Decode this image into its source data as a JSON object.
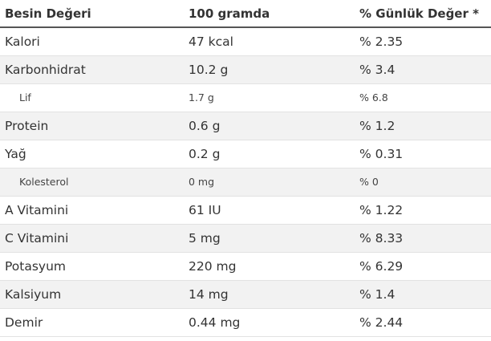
{
  "table": {
    "headers": {
      "nutrient": "Besin Değeri",
      "per_100g": "100 gramda",
      "daily_value": "% Günlük Değer *"
    },
    "rows": [
      {
        "name": "Kalori",
        "amount": "47 kcal",
        "daily": "% 2.35",
        "sub": false
      },
      {
        "name": "Karbonhidrat",
        "amount": "10.2 g",
        "daily": "% 3.4",
        "sub": false
      },
      {
        "name": "Lif",
        "amount": "1.7 g",
        "daily": "% 6.8",
        "sub": true
      },
      {
        "name": "Protein",
        "amount": "0.6 g",
        "daily": "% 1.2",
        "sub": false
      },
      {
        "name": "Yağ",
        "amount": "0.2 g",
        "daily": "% 0.31",
        "sub": false
      },
      {
        "name": "Kolesterol",
        "amount": "0 mg",
        "daily": "% 0",
        "sub": true
      },
      {
        "name": "A Vitamini",
        "amount": "61 IU",
        "daily": "% 1.22",
        "sub": false
      },
      {
        "name": "C Vitamini",
        "amount": "5 mg",
        "daily": "% 8.33",
        "sub": false
      },
      {
        "name": "Potasyum",
        "amount": "220 mg",
        "daily": "% 6.29",
        "sub": false
      },
      {
        "name": "Kalsiyum",
        "amount": "14 mg",
        "daily": "% 1.4",
        "sub": false
      },
      {
        "name": "Demir",
        "amount": "0.44 mg",
        "daily": "% 2.44",
        "sub": false
      }
    ]
  }
}
